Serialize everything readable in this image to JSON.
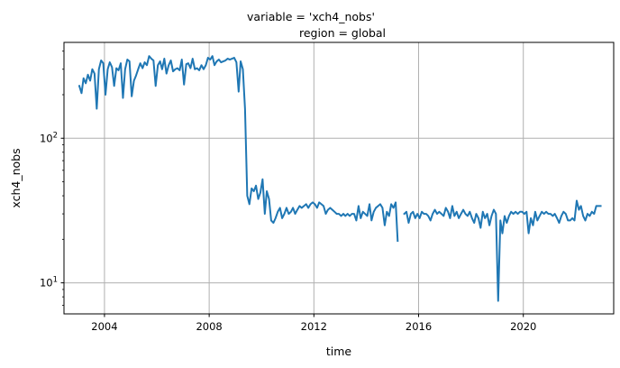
{
  "chart_data": {
    "type": "line",
    "title": "variable = 'xch4_nobs'",
    "subtitle": "region = global",
    "xlabel": "time",
    "ylabel": "xch4_nobs",
    "x_range": [
      "2002-06-15",
      "2023-06-15"
    ],
    "y_range": [
      6.1,
      460
    ],
    "yscale": "log",
    "grid": true,
    "line_color": "#1f77b4",
    "x_ticks": [
      {
        "date": "2004-01-01",
        "label": "2004"
      },
      {
        "date": "2008-01-01",
        "label": "2008"
      },
      {
        "date": "2012-01-01",
        "label": "2012"
      },
      {
        "date": "2016-01-01",
        "label": "2016"
      },
      {
        "date": "2020-01-01",
        "label": "2020"
      }
    ],
    "y_ticks": [
      {
        "value": 10,
        "base": "10",
        "exp": "1"
      },
      {
        "value": 100,
        "base": "10",
        "exp": "2"
      }
    ],
    "series": [
      {
        "points": [
          [
            "2003-01-15",
            230
          ],
          [
            "2003-02-15",
            205
          ],
          [
            "2003-03-15",
            260
          ],
          [
            "2003-04-15",
            240
          ],
          [
            "2003-05-15",
            275
          ],
          [
            "2003-06-15",
            250
          ],
          [
            "2003-07-15",
            300
          ],
          [
            "2003-08-15",
            280
          ],
          [
            "2003-09-15",
            160
          ],
          [
            "2003-10-15",
            300
          ],
          [
            "2003-11-15",
            345
          ],
          [
            "2003-12-15",
            330
          ],
          [
            "2004-01-15",
            200
          ],
          [
            "2004-02-15",
            300
          ],
          [
            "2004-03-15",
            335
          ],
          [
            "2004-04-15",
            310
          ],
          [
            "2004-05-15",
            230
          ],
          [
            "2004-06-15",
            305
          ],
          [
            "2004-07-15",
            295
          ],
          [
            "2004-08-15",
            330
          ],
          [
            "2004-09-15",
            190
          ],
          [
            "2004-10-15",
            300
          ],
          [
            "2004-11-15",
            350
          ],
          [
            "2004-12-15",
            340
          ],
          [
            "2005-01-15",
            195
          ],
          [
            "2005-02-15",
            250
          ],
          [
            "2005-03-15",
            270
          ],
          [
            "2005-04-15",
            300
          ],
          [
            "2005-05-15",
            330
          ],
          [
            "2005-06-15",
            305
          ],
          [
            "2005-07-15",
            335
          ],
          [
            "2005-08-15",
            320
          ],
          [
            "2005-09-15",
            370
          ],
          [
            "2005-10-15",
            355
          ],
          [
            "2005-11-15",
            345
          ],
          [
            "2005-12-15",
            230
          ],
          [
            "2006-01-15",
            320
          ],
          [
            "2006-02-15",
            340
          ],
          [
            "2006-03-15",
            300
          ],
          [
            "2006-04-15",
            355
          ],
          [
            "2006-05-15",
            280
          ],
          [
            "2006-06-15",
            320
          ],
          [
            "2006-07-15",
            345
          ],
          [
            "2006-08-15",
            290
          ],
          [
            "2006-09-15",
            300
          ],
          [
            "2006-10-15",
            305
          ],
          [
            "2006-11-15",
            295
          ],
          [
            "2006-12-15",
            350
          ],
          [
            "2007-01-15",
            235
          ],
          [
            "2007-02-15",
            325
          ],
          [
            "2007-03-15",
            330
          ],
          [
            "2007-04-15",
            305
          ],
          [
            "2007-05-15",
            355
          ],
          [
            "2007-06-15",
            300
          ],
          [
            "2007-07-15",
            305
          ],
          [
            "2007-08-15",
            295
          ],
          [
            "2007-09-15",
            320
          ],
          [
            "2007-10-15",
            300
          ],
          [
            "2007-11-15",
            320
          ],
          [
            "2007-12-15",
            360
          ],
          [
            "2008-01-15",
            350
          ],
          [
            "2008-02-15",
            370
          ],
          [
            "2008-03-15",
            320
          ],
          [
            "2008-04-15",
            340
          ],
          [
            "2008-05-15",
            350
          ],
          [
            "2008-06-15",
            335
          ],
          [
            "2008-07-15",
            340
          ],
          [
            "2008-08-15",
            345
          ],
          [
            "2008-09-15",
            355
          ],
          [
            "2008-10-15",
            350
          ],
          [
            "2008-11-15",
            355
          ],
          [
            "2008-12-15",
            360
          ],
          [
            "2009-01-15",
            335
          ],
          [
            "2009-02-15",
            210
          ],
          [
            "2009-03-15",
            340
          ],
          [
            "2009-04-15",
            300
          ],
          [
            "2009-05-15",
            160
          ],
          [
            "2009-06-15",
            40
          ],
          [
            "2009-07-15",
            35
          ],
          [
            "2009-08-15",
            45
          ],
          [
            "2009-09-15",
            43
          ],
          [
            "2009-10-15",
            47
          ],
          [
            "2009-11-15",
            38
          ],
          [
            "2009-12-15",
            42
          ],
          [
            "2010-01-15",
            52
          ],
          [
            "2010-02-15",
            30
          ],
          [
            "2010-03-15",
            43
          ],
          [
            "2010-04-15",
            38
          ],
          [
            "2010-05-15",
            27
          ],
          [
            "2010-06-15",
            26
          ],
          [
            "2010-07-15",
            28
          ],
          [
            "2010-08-15",
            31
          ],
          [
            "2010-09-15",
            33
          ],
          [
            "2010-10-15",
            28
          ],
          [
            "2010-11-15",
            30
          ],
          [
            "2010-12-15",
            33
          ],
          [
            "2011-01-15",
            30
          ],
          [
            "2011-02-15",
            31
          ],
          [
            "2011-03-15",
            33
          ],
          [
            "2011-04-15",
            30
          ],
          [
            "2011-05-15",
            32
          ],
          [
            "2011-06-15",
            34
          ],
          [
            "2011-07-15",
            33
          ],
          [
            "2011-08-15",
            34
          ],
          [
            "2011-09-15",
            35
          ],
          [
            "2011-10-15",
            33
          ],
          [
            "2011-11-15",
            35
          ],
          [
            "2011-12-15",
            36
          ],
          [
            "2012-01-15",
            35
          ],
          [
            "2012-02-15",
            33
          ],
          [
            "2012-03-15",
            36
          ],
          [
            "2012-04-15",
            35
          ],
          [
            "2012-05-15",
            34
          ],
          [
            "2012-06-15",
            30
          ],
          [
            "2012-07-15",
            32
          ],
          [
            "2012-08-15",
            33
          ],
          [
            "2012-09-15",
            32
          ],
          [
            "2012-10-15",
            31
          ],
          [
            "2012-11-15",
            30
          ],
          [
            "2012-12-15",
            30
          ],
          [
            "2013-01-15",
            29
          ],
          [
            "2013-02-15",
            30
          ],
          [
            "2013-03-15",
            29
          ],
          [
            "2013-04-15",
            30
          ],
          [
            "2013-05-15",
            29
          ],
          [
            "2013-06-15",
            30
          ],
          [
            "2013-07-15",
            30
          ],
          [
            "2013-08-15",
            27
          ],
          [
            "2013-09-15",
            34
          ],
          [
            "2013-10-15",
            28
          ],
          [
            "2013-11-15",
            31
          ],
          [
            "2013-12-15",
            30
          ],
          [
            "2014-01-15",
            29
          ],
          [
            "2014-02-15",
            35
          ],
          [
            "2014-03-15",
            27
          ],
          [
            "2014-04-15",
            31
          ],
          [
            "2014-05-15",
            33
          ],
          [
            "2014-06-15",
            34
          ],
          [
            "2014-07-15",
            35
          ],
          [
            "2014-08-15",
            33
          ],
          [
            "2014-09-15",
            25
          ],
          [
            "2014-10-15",
            31
          ],
          [
            "2014-11-15",
            29
          ],
          [
            "2014-12-15",
            35
          ],
          [
            "2015-01-15",
            33
          ],
          [
            "2015-02-15",
            36
          ],
          [
            "2015-03-15",
            19.5
          ],
          [
            "2015-06-15",
            30
          ],
          [
            "2015-07-15",
            31
          ],
          [
            "2015-08-15",
            26
          ],
          [
            "2015-09-15",
            30
          ],
          [
            "2015-10-15",
            31
          ],
          [
            "2015-11-15",
            28
          ],
          [
            "2015-12-15",
            30
          ],
          [
            "2016-01-15",
            28
          ],
          [
            "2016-02-15",
            31
          ],
          [
            "2016-03-15",
            30
          ],
          [
            "2016-04-15",
            30
          ],
          [
            "2016-05-15",
            29
          ],
          [
            "2016-06-15",
            27
          ],
          [
            "2016-07-15",
            30
          ],
          [
            "2016-08-15",
            32
          ],
          [
            "2016-09-15",
            30
          ],
          [
            "2016-10-15",
            31
          ],
          [
            "2016-11-15",
            30
          ],
          [
            "2016-12-15",
            29
          ],
          [
            "2017-01-15",
            33
          ],
          [
            "2017-02-15",
            31
          ],
          [
            "2017-03-15",
            28
          ],
          [
            "2017-04-15",
            34
          ],
          [
            "2017-05-15",
            29
          ],
          [
            "2017-06-15",
            31
          ],
          [
            "2017-07-15",
            28
          ],
          [
            "2017-08-15",
            30
          ],
          [
            "2017-09-15",
            32
          ],
          [
            "2017-10-15",
            30
          ],
          [
            "2017-11-15",
            29
          ],
          [
            "2017-12-15",
            31
          ],
          [
            "2018-01-15",
            28
          ],
          [
            "2018-02-15",
            26
          ],
          [
            "2018-03-15",
            30
          ],
          [
            "2018-04-15",
            28
          ],
          [
            "2018-05-15",
            24
          ],
          [
            "2018-06-15",
            31
          ],
          [
            "2018-07-15",
            28
          ],
          [
            "2018-08-15",
            30
          ],
          [
            "2018-09-15",
            25
          ],
          [
            "2018-10-15",
            29
          ],
          [
            "2018-11-15",
            32
          ],
          [
            "2018-12-15",
            30
          ],
          [
            "2019-01-15",
            7.5
          ],
          [
            "2019-02-15",
            27
          ],
          [
            "2019-03-15",
            22
          ],
          [
            "2019-04-15",
            29
          ],
          [
            "2019-05-15",
            26
          ],
          [
            "2019-06-15",
            29
          ],
          [
            "2019-07-15",
            31
          ],
          [
            "2019-08-15",
            30
          ],
          [
            "2019-09-15",
            31
          ],
          [
            "2019-10-15",
            30
          ],
          [
            "2019-11-15",
            31
          ],
          [
            "2019-12-15",
            31
          ],
          [
            "2020-01-15",
            30
          ],
          [
            "2020-02-15",
            31
          ],
          [
            "2020-03-15",
            22
          ],
          [
            "2020-04-15",
            28
          ],
          [
            "2020-05-15",
            25
          ],
          [
            "2020-06-15",
            31
          ],
          [
            "2020-07-15",
            27
          ],
          [
            "2020-08-15",
            29
          ],
          [
            "2020-09-15",
            31
          ],
          [
            "2020-10-15",
            30
          ],
          [
            "2020-11-15",
            31
          ],
          [
            "2020-12-15",
            30
          ],
          [
            "2021-01-15",
            30
          ],
          [
            "2021-02-15",
            29
          ],
          [
            "2021-03-15",
            30
          ],
          [
            "2021-04-15",
            28
          ],
          [
            "2021-05-15",
            26
          ],
          [
            "2021-06-15",
            29
          ],
          [
            "2021-07-15",
            31
          ],
          [
            "2021-08-15",
            30
          ],
          [
            "2021-09-15",
            27
          ],
          [
            "2021-10-15",
            27
          ],
          [
            "2021-11-15",
            28
          ],
          [
            "2021-12-15",
            27
          ],
          [
            "2022-01-15",
            37
          ],
          [
            "2022-02-15",
            32
          ],
          [
            "2022-03-15",
            34
          ],
          [
            "2022-04-15",
            29
          ],
          [
            "2022-05-15",
            27
          ],
          [
            "2022-06-15",
            30
          ],
          [
            "2022-07-15",
            29
          ],
          [
            "2022-08-15",
            31
          ],
          [
            "2022-09-15",
            30
          ],
          [
            "2022-10-15",
            34
          ],
          [
            "2022-11-15",
            34
          ],
          [
            "2022-12-15",
            34
          ]
        ]
      }
    ]
  }
}
